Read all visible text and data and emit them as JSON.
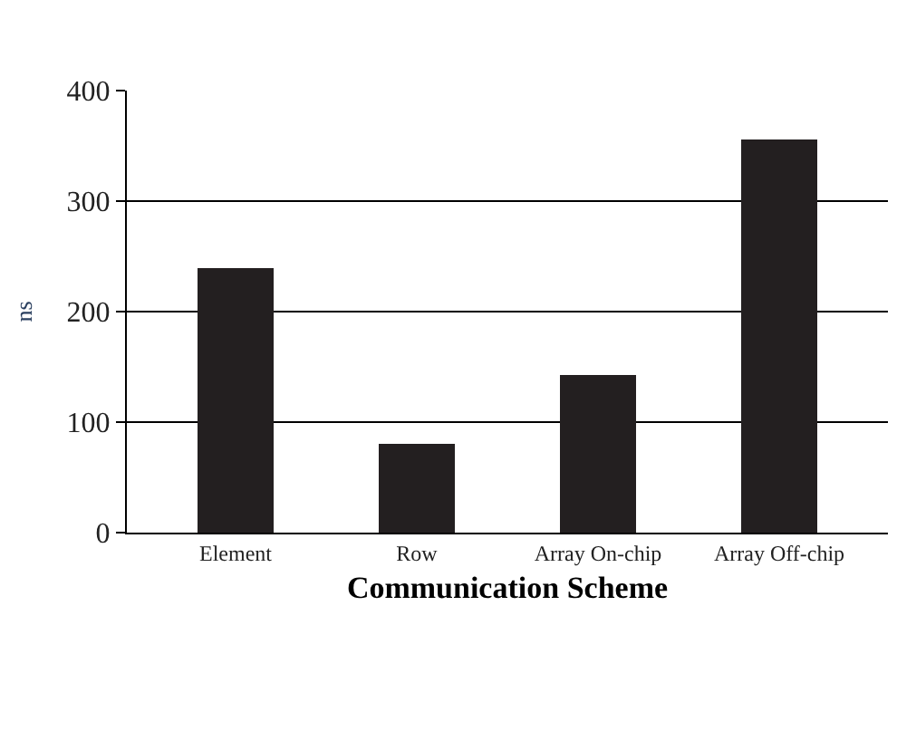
{
  "chart_data": {
    "type": "bar",
    "xlabel": "Communication Scheme",
    "ylabel": "ns",
    "categories": [
      "Element",
      "Row",
      "Array On-chip",
      "Array Off-chip"
    ],
    "values": [
      240,
      80,
      142,
      355
    ],
    "color": "#231f20",
    "ylim": [
      0,
      400
    ],
    "yticks": [
      0,
      100,
      200,
      300,
      400
    ],
    "grid": "y"
  }
}
